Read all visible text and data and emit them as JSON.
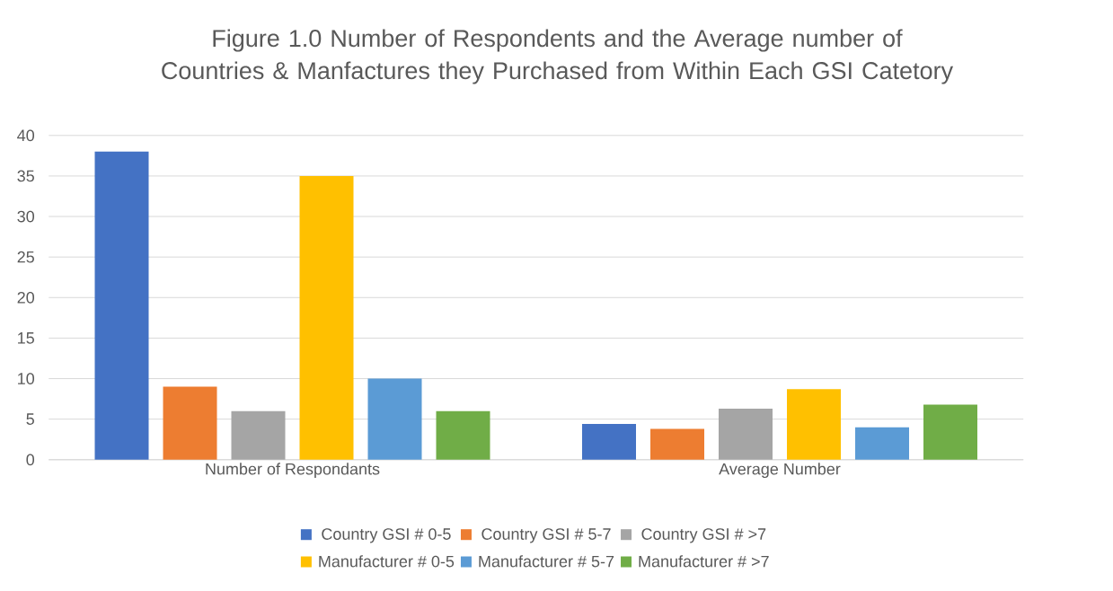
{
  "chart_data": {
    "type": "bar",
    "title": "Figure 1.0 Number of Respondents and the Average number of Countries & Manfactures they Purchased from Within Each GSI Catetory",
    "categories": [
      "Number of Respondants",
      "Average Number"
    ],
    "series": [
      {
        "name": "Country GSI # 0-5",
        "color": "#4472c4",
        "values": [
          38,
          4.4
        ]
      },
      {
        "name": "Country GSI # 5-7",
        "color": "#ed7d31",
        "values": [
          9,
          3.8
        ]
      },
      {
        "name": "Country GSI # >7",
        "color": "#a5a5a5",
        "values": [
          6,
          6.3
        ]
      },
      {
        "name": "Manufacturer # 0-5",
        "color": "#ffc000",
        "values": [
          35,
          8.7
        ]
      },
      {
        "name": "Manufacturer # 5-7",
        "color": "#5b9bd5",
        "values": [
          10,
          4.0
        ]
      },
      {
        "name": "Manufacturer # >7",
        "color": "#70ad47",
        "values": [
          6,
          6.8
        ]
      }
    ],
    "ylim": [
      0,
      40
    ],
    "yticks": [
      0,
      5,
      10,
      15,
      20,
      25,
      30,
      35,
      40
    ],
    "grid": "y",
    "legend": "bottom"
  }
}
